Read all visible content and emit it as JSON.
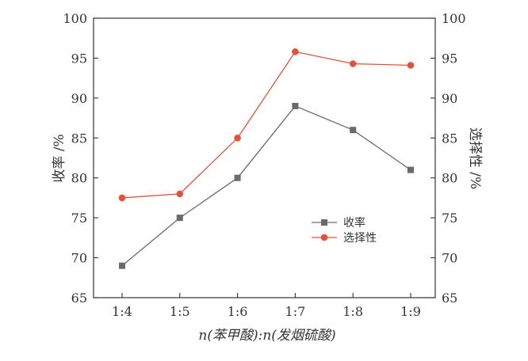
{
  "chart_data": {
    "type": "line",
    "title": "",
    "categories": [
      "1:4",
      "1:5",
      "1:6",
      "1:7",
      "1:8",
      "1:9"
    ],
    "xlabel": "n(苯甲酸):n(发烟硫酸)",
    "ylabel_left": "收率 /%",
    "ylabel_right": "选择性 /%",
    "ylim": [
      65,
      100
    ],
    "yticks": [
      65,
      70,
      75,
      80,
      85,
      90,
      95,
      100
    ],
    "grid": false,
    "legend_position": "center-right",
    "series": [
      {
        "name": "收率",
        "marker": "square",
        "color": "#6a6a6a",
        "values": [
          69,
          75,
          80,
          89,
          86,
          81
        ]
      },
      {
        "name": "选择性",
        "marker": "circle",
        "color": "#e0533a",
        "values": [
          77.5,
          78,
          85,
          95.8,
          94.3,
          94.1
        ]
      }
    ]
  }
}
